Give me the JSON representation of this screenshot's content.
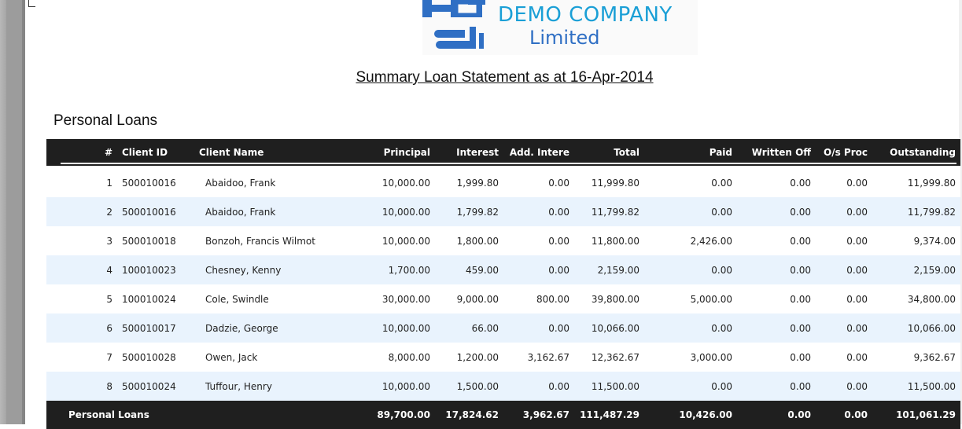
{
  "logo": {
    "line1": "DEMO COMPANY",
    "line2": "Limited"
  },
  "report": {
    "title": "Summary Loan Statement as at 16-Apr-2014",
    "section": "Personal Loans"
  },
  "table": {
    "headers": {
      "num": "#",
      "client_id": "Client ID",
      "client_name": "Client Name",
      "principal": "Principal",
      "interest": "Interest",
      "add_interest": "Add. Intere",
      "total": "Total",
      "paid": "Paid",
      "written_off": "Written Off",
      "os_proc": "O/s Proc",
      "outstanding": "Outstanding"
    },
    "rows": [
      {
        "num": "1",
        "client_id": "500010016",
        "client_name": "Abaidoo, Frank",
        "principal": "10,000.00",
        "interest": "1,999.80",
        "add_interest": "0.00",
        "total": "11,999.80",
        "paid": "0.00",
        "written_off": "0.00",
        "os_proc": "0.00",
        "outstanding": "11,999.80"
      },
      {
        "num": "2",
        "client_id": "500010016",
        "client_name": "Abaidoo, Frank",
        "principal": "10,000.00",
        "interest": "1,799.82",
        "add_interest": "0.00",
        "total": "11,799.82",
        "paid": "0.00",
        "written_off": "0.00",
        "os_proc": "0.00",
        "outstanding": "11,799.82"
      },
      {
        "num": "3",
        "client_id": "500010018",
        "client_name": "Bonzoh, Francis Wilmot",
        "principal": "10,000.00",
        "interest": "1,800.00",
        "add_interest": "0.00",
        "total": "11,800.00",
        "paid": "2,426.00",
        "written_off": "0.00",
        "os_proc": "0.00",
        "outstanding": "9,374.00"
      },
      {
        "num": "4",
        "client_id": "100010023",
        "client_name": "Chesney, Kenny",
        "principal": "1,700.00",
        "interest": "459.00",
        "add_interest": "0.00",
        "total": "2,159.00",
        "paid": "0.00",
        "written_off": "0.00",
        "os_proc": "0.00",
        "outstanding": "2,159.00"
      },
      {
        "num": "5",
        "client_id": "100010024",
        "client_name": "Cole, Swindle",
        "principal": "30,000.00",
        "interest": "9,000.00",
        "add_interest": "800.00",
        "total": "39,800.00",
        "paid": "5,000.00",
        "written_off": "0.00",
        "os_proc": "0.00",
        "outstanding": "34,800.00"
      },
      {
        "num": "6",
        "client_id": "500010017",
        "client_name": "Dadzie, George",
        "principal": "10,000.00",
        "interest": "66.00",
        "add_interest": "0.00",
        "total": "10,066.00",
        "paid": "0.00",
        "written_off": "0.00",
        "os_proc": "0.00",
        "outstanding": "10,066.00"
      },
      {
        "num": "7",
        "client_id": "500010028",
        "client_name": "Owen, Jack",
        "principal": "8,000.00",
        "interest": "1,200.00",
        "add_interest": "3,162.67",
        "total": "12,362.67",
        "paid": "3,000.00",
        "written_off": "0.00",
        "os_proc": "0.00",
        "outstanding": "9,362.67"
      },
      {
        "num": "8",
        "client_id": "500010024",
        "client_name": "Tuffour, Henry",
        "principal": "10,000.00",
        "interest": "1,500.00",
        "add_interest": "0.00",
        "total": "11,500.00",
        "paid": "0.00",
        "written_off": "0.00",
        "os_proc": "0.00",
        "outstanding": "11,500.00"
      }
    ],
    "footer": {
      "label": "Personal Loans",
      "principal": "89,700.00",
      "interest": "17,824.62",
      "add_interest": "3,962.67",
      "total": "111,487.29",
      "paid": "10,426.00",
      "written_off": "0.00",
      "os_proc": "0.00",
      "outstanding": "101,061.29"
    }
  },
  "colors": {
    "header_bg": "#1f1f1f",
    "alt_row_bg": "#e9f3fd",
    "logo_primary": "#1a9fd6",
    "logo_secondary": "#2f6fc4"
  }
}
